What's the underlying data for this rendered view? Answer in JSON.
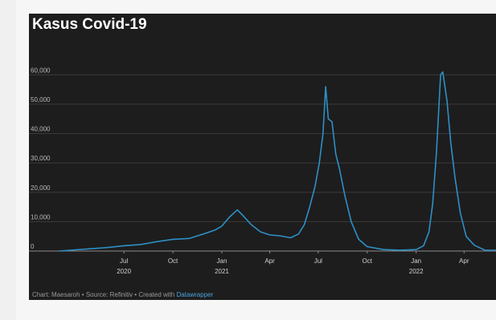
{
  "chart_data": {
    "type": "line",
    "title": "Kasus Covid-19",
    "xlabel": "",
    "ylabel": "",
    "ylim": [
      0,
      65000
    ],
    "y_ticks": [
      0,
      10000,
      20000,
      30000,
      40000,
      50000,
      60000
    ],
    "y_tick_labels": [
      "0",
      "10,000",
      "20,000",
      "30,000",
      "40,000",
      "50,000",
      "60,000"
    ],
    "x_range": [
      "2020-03-02",
      "2022-05-31"
    ],
    "x_ticks": [
      {
        "date": "2020-07-01",
        "label": "Jul",
        "year": "2020"
      },
      {
        "date": "2020-10-01",
        "label": "Oct",
        "year": ""
      },
      {
        "date": "2021-01-01",
        "label": "Jan",
        "year": "2021"
      },
      {
        "date": "2021-04-01",
        "label": "Apr",
        "year": ""
      },
      {
        "date": "2021-07-01",
        "label": "Jul",
        "year": ""
      },
      {
        "date": "2021-10-01",
        "label": "Oct",
        "year": ""
      },
      {
        "date": "2022-01-01",
        "label": "Jan",
        "year": "2022"
      },
      {
        "date": "2022-04-01",
        "label": "Apr",
        "year": ""
      }
    ],
    "grid": true,
    "line_color": "#2e8fc6",
    "series": [
      {
        "values": [
          [
            "2020-03-02",
            0
          ],
          [
            "2020-04-01",
            400
          ],
          [
            "2020-05-01",
            800
          ],
          [
            "2020-06-01",
            1200
          ],
          [
            "2020-07-01",
            1800
          ],
          [
            "2020-08-01",
            2200
          ],
          [
            "2020-09-01",
            3200
          ],
          [
            "2020-10-01",
            4000
          ],
          [
            "2020-11-01",
            4300
          ],
          [
            "2020-12-01",
            6000
          ],
          [
            "2020-12-20",
            7200
          ],
          [
            "2021-01-01",
            8500
          ],
          [
            "2021-01-15",
            11500
          ],
          [
            "2021-01-30",
            14000
          ],
          [
            "2021-02-10",
            12000
          ],
          [
            "2021-02-25",
            9000
          ],
          [
            "2021-03-15",
            6500
          ],
          [
            "2021-04-01",
            5500
          ],
          [
            "2021-04-20",
            5200
          ],
          [
            "2021-05-10",
            4500
          ],
          [
            "2021-05-25",
            5800
          ],
          [
            "2021-06-05",
            9000
          ],
          [
            "2021-06-15",
            15000
          ],
          [
            "2021-06-25",
            22000
          ],
          [
            "2021-07-03",
            30000
          ],
          [
            "2021-07-10",
            40000
          ],
          [
            "2021-07-15",
            56000
          ],
          [
            "2021-07-20",
            45000
          ],
          [
            "2021-07-27",
            44000
          ],
          [
            "2021-08-03",
            33000
          ],
          [
            "2021-08-10",
            28000
          ],
          [
            "2021-08-20",
            19000
          ],
          [
            "2021-09-01",
            10000
          ],
          [
            "2021-09-15",
            4000
          ],
          [
            "2021-10-01",
            1500
          ],
          [
            "2021-11-01",
            500
          ],
          [
            "2021-12-01",
            300
          ],
          [
            "2022-01-01",
            500
          ],
          [
            "2022-01-15",
            1800
          ],
          [
            "2022-01-25",
            6500
          ],
          [
            "2022-02-01",
            16000
          ],
          [
            "2022-02-08",
            33000
          ],
          [
            "2022-02-16",
            60000
          ],
          [
            "2022-02-20",
            61000
          ],
          [
            "2022-02-28",
            51000
          ],
          [
            "2022-03-07",
            37000
          ],
          [
            "2022-03-15",
            25000
          ],
          [
            "2022-03-25",
            13000
          ],
          [
            "2022-04-05",
            5000
          ],
          [
            "2022-04-20",
            2000
          ],
          [
            "2022-05-10",
            300
          ],
          [
            "2022-05-31",
            250
          ]
        ]
      }
    ]
  },
  "footer": {
    "text": "Chart: Maesaroh • Source: Refinitiv • Created with ",
    "link": "Datawrapper"
  }
}
